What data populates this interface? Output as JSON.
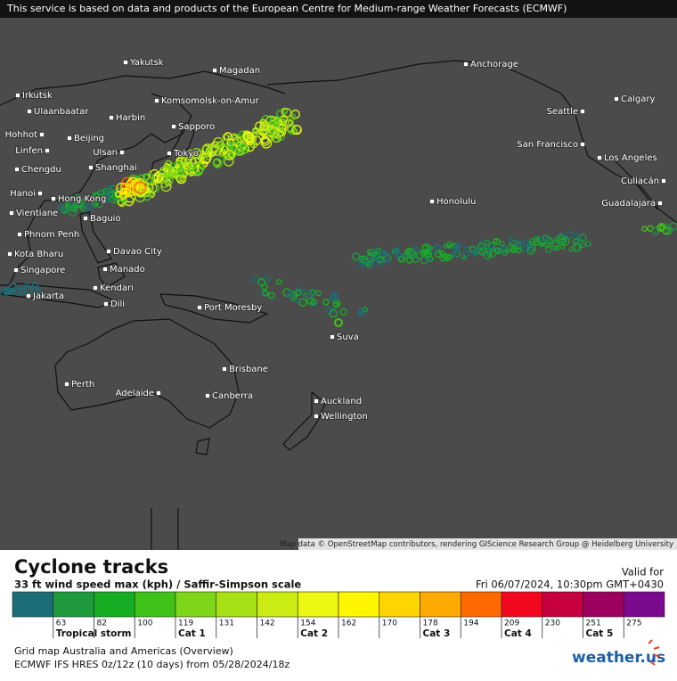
{
  "banner": "This service is based on data and products of the European Centre for Medium-range Weather Forecasts (ECMWF)",
  "attribution": "Map data © OpenStreetMap contributors, rendering GIScience Research Group @ Heidelberg University",
  "cities": [
    "Yakutsk",
    "Magadan",
    "Anchorage",
    "Irkutsk",
    "Komsomolsk-on-Amur",
    "Calgary",
    "Ulaanbaatar",
    "Seattle",
    "Harbin",
    "Sapporo",
    "Hohhot",
    "Beijing",
    "San Francisco",
    "Linfen",
    "Ulsan",
    "Tokyo",
    "Los Angeles",
    "Chengdu",
    "Shanghai",
    "Culiacán",
    "Hanoi",
    "Hong Kong",
    "Honolulu",
    "Guadalajara",
    "Vientiane",
    "Baguio",
    "Phnom Penh",
    "Davao City",
    "Kota Bharu",
    "Singapore",
    "Manado",
    "Kendari",
    "Jakarta",
    "Port Moresby",
    "Dili",
    "Suva",
    "Brisbane",
    "Perth",
    "Adelaide",
    "Canberra",
    "Auckland",
    "Wellington"
  ],
  "legend": {
    "title": "Cyclone tracks",
    "subtitle": "33 ft wind speed max (kph) / Saffir-Simpson scale",
    "valid_label": "Valid for",
    "valid_time": "Fri 06/07/2024, 10:30pm GMT+0430",
    "colors": [
      "#1b6e78",
      "#1e9a3c",
      "#17ad23",
      "#3fc218",
      "#7fd51a",
      "#a8e016",
      "#cbeb14",
      "#ecf712",
      "#fff600",
      "#ffd500",
      "#ffaa00",
      "#ff6a00",
      "#f2081e",
      "#c6003e",
      "#9c005e",
      "#7a0a8e"
    ],
    "ticks": [
      63,
      82,
      100,
      119,
      131,
      142,
      154,
      162,
      170,
      178,
      194,
      209,
      230,
      251,
      275
    ],
    "categories": [
      "Tropical storm",
      "Cat 1",
      "Cat 2",
      "Cat 3",
      "Cat 4",
      "Cat 5"
    ]
  },
  "footer": {
    "line1": "Grid map Australia and Americas (Overview)",
    "line2": "ECMWF IFS HRES 0z/12z (10 days) from  05/28/2024/18z",
    "logo": "weather.us"
  }
}
